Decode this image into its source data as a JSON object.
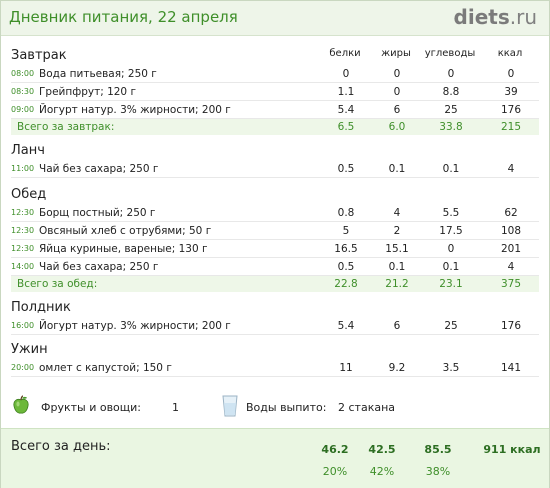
{
  "header": {
    "title": "Дневник питания, 22 апреля",
    "logo_main": "diets",
    "logo_tld": ".ru"
  },
  "columns": {
    "protein": "белки",
    "fat": "жиры",
    "carbs": "углеводы",
    "kcal": "ккал"
  },
  "meals": [
    {
      "name": "Завтрак",
      "items": [
        {
          "time": "08:00",
          "food": "Вода питьевая; 250 г",
          "p": "0",
          "f": "0",
          "c": "0",
          "k": "0"
        },
        {
          "time": "08:30",
          "food": "Грейпфрут; 120 г",
          "p": "1.1",
          "f": "0",
          "c": "8.8",
          "k": "39"
        },
        {
          "time": "09:00",
          "food": "Йогурт натур. 3% жирности; 200 г",
          "p": "5.4",
          "f": "6",
          "c": "25",
          "k": "176"
        }
      ],
      "subtotal": {
        "label": "Всего за завтрак:",
        "p": "6.5",
        "f": "6.0",
        "c": "33.8",
        "k": "215"
      }
    },
    {
      "name": "Ланч",
      "items": [
        {
          "time": "11:00",
          "food": "Чай без сахара; 250 г",
          "p": "0.5",
          "f": "0.1",
          "c": "0.1",
          "k": "4"
        }
      ]
    },
    {
      "name": "Обед",
      "items": [
        {
          "time": "12:30",
          "food": "Борщ постный; 250 г",
          "p": "0.8",
          "f": "4",
          "c": "5.5",
          "k": "62"
        },
        {
          "time": "12:30",
          "food": "Овсяный хлеб с отрубями; 50 г",
          "p": "5",
          "f": "2",
          "c": "17.5",
          "k": "108"
        },
        {
          "time": "12:30",
          "food": "Яйца куриные, вареные; 130 г",
          "p": "16.5",
          "f": "15.1",
          "c": "0",
          "k": "201"
        },
        {
          "time": "14:00",
          "food": "Чай без сахара; 250 г",
          "p": "0.5",
          "f": "0.1",
          "c": "0.1",
          "k": "4"
        }
      ],
      "subtotal": {
        "label": "Всего за обед:",
        "p": "22.8",
        "f": "21.2",
        "c": "23.1",
        "k": "375"
      }
    },
    {
      "name": "Полдник",
      "items": [
        {
          "time": "16:00",
          "food": "Йогурт натур. 3% жирности; 200 г",
          "p": "5.4",
          "f": "6",
          "c": "25",
          "k": "176"
        }
      ]
    },
    {
      "name": "Ужин",
      "items": [
        {
          "time": "20:00",
          "food": "омлет с капустой; 150 г",
          "p": "11",
          "f": "9.2",
          "c": "3.5",
          "k": "141"
        }
      ]
    }
  ],
  "summary": {
    "fruits_label": "Фрукты и овощи:",
    "fruits_value": "1",
    "water_label": "Воды выпито:",
    "water_value": "2 стакана"
  },
  "totals": {
    "label": "Всего за день:",
    "p": "46.2",
    "f": "42.5",
    "c": "85.5",
    "k": "911 ккал",
    "p_pct": "20%",
    "f_pct": "42%",
    "c_pct": "38%"
  },
  "colors": {
    "accent": "#3f8f2a",
    "header_bg": "#eef5e9",
    "total_bg": "#eaf6e2"
  }
}
